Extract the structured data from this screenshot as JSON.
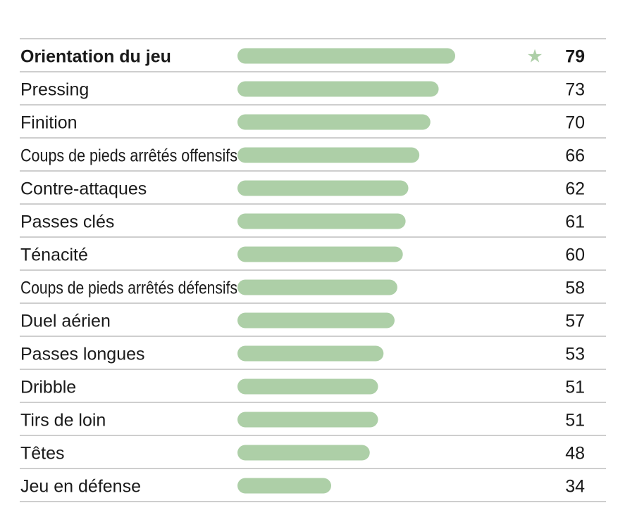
{
  "chart_data": {
    "type": "bar",
    "orientation": "horizontal",
    "categories": [
      "Orientation du jeu",
      "Pressing",
      "Finition",
      "Coups de pieds arrêtés offensifs",
      "Contre-attaques",
      "Passes clés",
      "Ténacité",
      "Coups de pieds arrêtés défensifs",
      "Duel aérien",
      "Passes longues",
      "Dribble",
      "Tirs de loin",
      "Têtes",
      "Jeu en défense"
    ],
    "values": [
      79,
      73,
      70,
      66,
      62,
      61,
      60,
      58,
      57,
      53,
      51,
      51,
      48,
      34
    ],
    "highlighted_index": 0,
    "highlight_marker": "star-icon",
    "highlight_marker_glyph": "★",
    "xlim": [
      0,
      100
    ],
    "bar_color": "#adcfa7",
    "star_color": "#adcfa7",
    "grid": false,
    "legend": "none",
    "title": "",
    "xlabel": "",
    "ylabel": ""
  }
}
